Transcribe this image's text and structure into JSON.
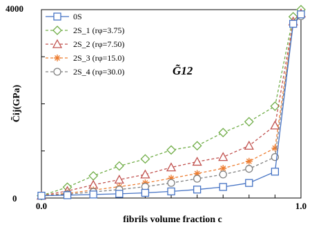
{
  "chart_data": {
    "type": "line",
    "xlabel": "fibrils volume fraction c",
    "ylabel": "C̃ij(GPa)",
    "annotation": "G̃12",
    "x_tick_labels": [
      "0.0",
      "1.0"
    ],
    "y_tick_labels": [
      "0",
      "4000"
    ],
    "xlim": [
      0,
      1
    ],
    "ylim": [
      0,
      4000
    ],
    "grid": false,
    "legend_position": "top-left",
    "x": [
      0.0,
      0.1,
      0.2,
      0.3,
      0.4,
      0.5,
      0.6,
      0.7,
      0.8,
      0.9,
      0.97,
      1.0
    ],
    "series": [
      {
        "name": "0S",
        "marker": "square",
        "color": "#4472C4",
        "dash": "solid",
        "values": [
          50,
          60,
          75,
          90,
          110,
          140,
          180,
          235,
          320,
          560,
          3700,
          3900
        ]
      },
      {
        "name": "2S_1 (rφ=3.75)",
        "marker": "diamond",
        "color": "#70AD47",
        "dash": "dashed",
        "values": [
          50,
          230,
          470,
          680,
          830,
          1020,
          1110,
          1390,
          1620,
          1950,
          3850,
          4000
        ]
      },
      {
        "name": "2S_2 (rφ=7.50)",
        "marker": "triangle",
        "color": "#C0504D",
        "dash": "dashed",
        "values": [
          50,
          150,
          280,
          390,
          500,
          650,
          770,
          870,
          1110,
          1540,
          3750,
          3920
        ]
      },
      {
        "name": "2S_3 (rφ=15.0)",
        "marker": "asterisk",
        "color": "#ED7D31",
        "dash": "dashed",
        "values": [
          50,
          100,
          170,
          240,
          320,
          420,
          520,
          630,
          780,
          1060,
          3720,
          3880
        ]
      },
      {
        "name": "2S_4 (rφ=30.0)",
        "marker": "circle",
        "color": "#7F7F7F",
        "dash": "dashed",
        "values": [
          50,
          80,
          130,
          180,
          240,
          320,
          410,
          500,
          620,
          870,
          3700,
          3860
        ]
      }
    ]
  }
}
